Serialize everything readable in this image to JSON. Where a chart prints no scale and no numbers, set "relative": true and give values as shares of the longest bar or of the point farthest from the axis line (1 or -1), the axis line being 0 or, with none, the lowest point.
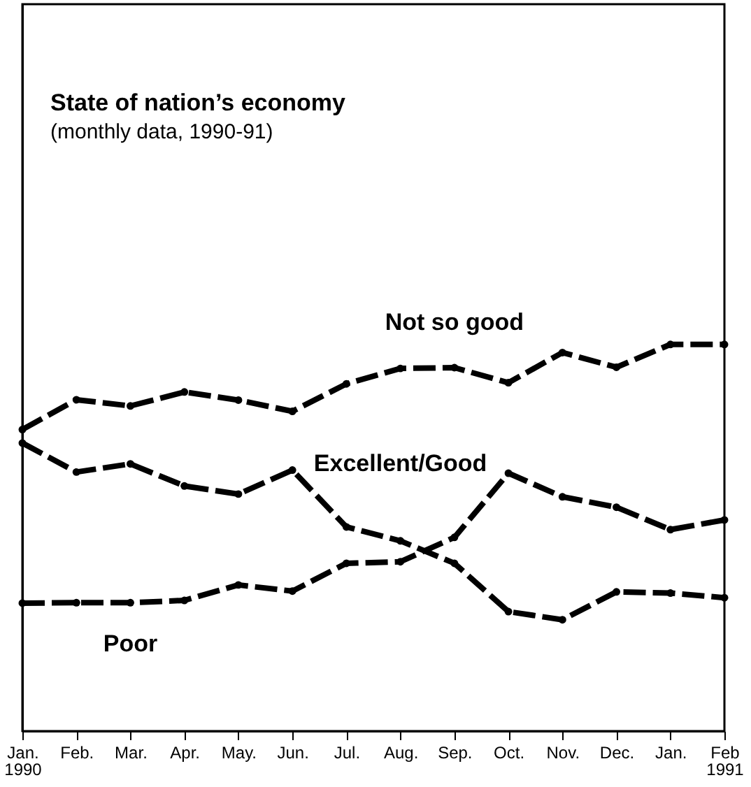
{
  "chart_data": {
    "type": "line",
    "title": "State of nation’s economy",
    "subtitle": "(monthly data, 1990-91)",
    "relative": true,
    "marker": "circle",
    "line_style": "dashed",
    "categories": [
      "Jan.\n1990",
      "Feb.",
      "Mar.",
      "Apr.",
      "May.",
      "Jun.",
      "Jul.",
      "Aug.",
      "Sep.",
      "Oct.",
      "Nov.",
      "Dec.",
      "Jan.",
      "Feb\n1991"
    ],
    "series": [
      {
        "name": "Not so good",
        "color": "#000000",
        "values": [
          0.78,
          0.857,
          0.841,
          0.877,
          0.856,
          0.827,
          0.898,
          0.938,
          0.94,
          0.901,
          0.979,
          0.941,
          1,
          1
        ]
      },
      {
        "name": "Excellent/Good",
        "color": "#000000",
        "values": [
          0.745,
          0.67,
          0.691,
          0.634,
          0.613,
          0.675,
          0.528,
          0.492,
          0.434,
          0.309,
          0.288,
          0.36,
          0.357,
          0.345
        ]
      },
      {
        "name": "Poor",
        "color": "#000000",
        "values": [
          0.331,
          0.332,
          0.332,
          0.338,
          0.378,
          0.362,
          0.434,
          0.438,
          0.501,
          0.667,
          0.606,
          0.579,
          0.521,
          0.546
        ]
      }
    ]
  }
}
